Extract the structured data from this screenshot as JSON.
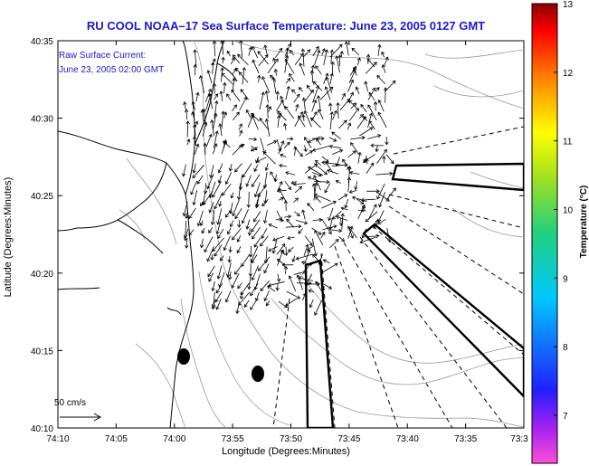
{
  "title": "RU COOL  NOAA–17  Sea Surface Temperature:  June 23, 2005 0127 GMT",
  "inset_line1": "Raw Surface Current:",
  "inset_line2": "June 23, 2005 02:00 GMT",
  "xlabel": "Longitude (Degrees:Minutes)",
  "ylabel": "Latitude (Degrees:Minutes)",
  "x_ticks": [
    "74:10",
    "74:05",
    "74:00",
    "73:55",
    "73:50",
    "73:45",
    "73:40",
    "73:35",
    "73:3"
  ],
  "y_ticks": [
    "40:35",
    "40:30",
    "40:25",
    "40:20",
    "40:15",
    "40:10"
  ],
  "scale_label": "50 cm/s",
  "colorbar": {
    "label": "Temperature (°C)",
    "ticks": [
      "13",
      "12",
      "11",
      "10",
      "9",
      "8",
      "7"
    ],
    "min": 6.3,
    "max": 13
  },
  "colors": {
    "title_text": "#1a1acc",
    "coastline": "#000000",
    "bathymetry": "#999999"
  }
}
